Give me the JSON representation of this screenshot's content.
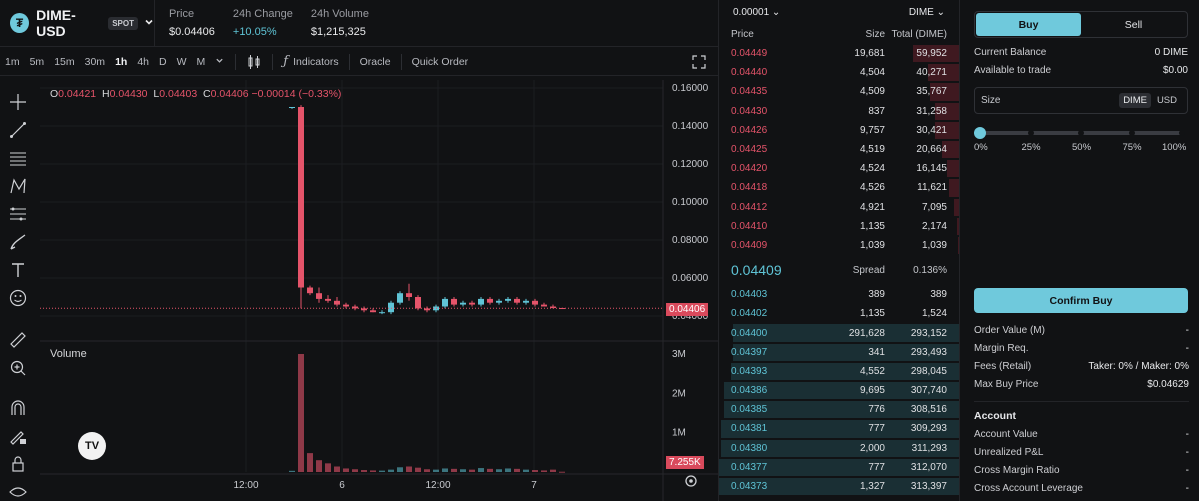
{
  "header": {
    "market_name": "DIME-USD",
    "market_type": "SPOT",
    "logo_letter": "₮",
    "stats": [
      {
        "label": "Price",
        "value": "$0.04406"
      },
      {
        "label": "24h Change",
        "value": "+10.05%"
      },
      {
        "label": "24h Volume",
        "value": "$1,215,325"
      }
    ]
  },
  "toolbar": {
    "timeframes": [
      "1m",
      "5m",
      "15m",
      "30m",
      "1h",
      "4h",
      "D",
      "W",
      "M"
    ],
    "active_timeframe": "1h",
    "indicators_label": "Indicators",
    "oracle_label": "Oracle",
    "quick_order_label": "Quick Order"
  },
  "tools": [
    "crosshair-icon",
    "trendline-icon",
    "fib-icon",
    "pattern-icon",
    "projection-icon",
    "brush-icon",
    "text-icon",
    "emoji-icon",
    "ruler-icon",
    "zoom-icon",
    "magnet-icon",
    "lock-drawing-icon",
    "lock-icon",
    "eye-icon"
  ],
  "chart": {
    "ohlc": {
      "o": "0.04421",
      "h": "0.04430",
      "l": "0.04403",
      "c": "0.04406",
      "change": "−0.00014 (−0.33%)"
    },
    "volume_label": "Volume",
    "last_price_tag": "0.04406",
    "last_price_tag_behind": "0.04400",
    "volume_tag": "7.255K",
    "price_ticks": [
      "0.16000",
      "0.14000",
      "0.12000",
      "0.10000",
      "0.08000",
      "0.06000",
      "0.04000"
    ],
    "volume_ticks": [
      "3M",
      "2M",
      "1M"
    ],
    "time_ticks": [
      "12:00",
      "6",
      "12:00",
      "7"
    ],
    "logo_text": "TV"
  },
  "chart_data": {
    "type": "candlestick",
    "price_axis": {
      "min": 0.04,
      "max": 0.16
    },
    "volume_axis": {
      "max": 3000000
    },
    "last_price": 0.04406,
    "candles": [
      {
        "o": 0.15,
        "h": 0.15,
        "l": 0.149,
        "c": 0.15
      },
      {
        "o": 0.15,
        "h": 0.151,
        "l": 0.044,
        "c": 0.055
      },
      {
        "o": 0.055,
        "h": 0.056,
        "l": 0.051,
        "c": 0.052
      },
      {
        "o": 0.052,
        "h": 0.055,
        "l": 0.047,
        "c": 0.049
      },
      {
        "o": 0.049,
        "h": 0.051,
        "l": 0.047,
        "c": 0.048
      },
      {
        "o": 0.048,
        "h": 0.05,
        "l": 0.045,
        "c": 0.046
      },
      {
        "o": 0.046,
        "h": 0.047,
        "l": 0.044,
        "c": 0.045
      },
      {
        "o": 0.045,
        "h": 0.046,
        "l": 0.043,
        "c": 0.044
      },
      {
        "o": 0.044,
        "h": 0.045,
        "l": 0.042,
        "c": 0.043
      },
      {
        "o": 0.043,
        "h": 0.044,
        "l": 0.042,
        "c": 0.042
      },
      {
        "o": 0.042,
        "h": 0.043,
        "l": 0.041,
        "c": 0.042
      },
      {
        "o": 0.042,
        "h": 0.048,
        "l": 0.041,
        "c": 0.047
      },
      {
        "o": 0.047,
        "h": 0.053,
        "l": 0.046,
        "c": 0.052
      },
      {
        "o": 0.052,
        "h": 0.057,
        "l": 0.048,
        "c": 0.05
      },
      {
        "o": 0.05,
        "h": 0.051,
        "l": 0.043,
        "c": 0.044
      },
      {
        "o": 0.044,
        "h": 0.045,
        "l": 0.042,
        "c": 0.043
      },
      {
        "o": 0.043,
        "h": 0.046,
        "l": 0.042,
        "c": 0.045
      },
      {
        "o": 0.045,
        "h": 0.05,
        "l": 0.044,
        "c": 0.049
      },
      {
        "o": 0.049,
        "h": 0.05,
        "l": 0.045,
        "c": 0.046
      },
      {
        "o": 0.046,
        "h": 0.048,
        "l": 0.045,
        "c": 0.047
      },
      {
        "o": 0.047,
        "h": 0.048,
        "l": 0.045,
        "c": 0.046
      },
      {
        "o": 0.046,
        "h": 0.05,
        "l": 0.045,
        "c": 0.049
      },
      {
        "o": 0.049,
        "h": 0.05,
        "l": 0.046,
        "c": 0.047
      },
      {
        "o": 0.047,
        "h": 0.049,
        "l": 0.046,
        "c": 0.048
      },
      {
        "o": 0.048,
        "h": 0.05,
        "l": 0.047,
        "c": 0.049
      },
      {
        "o": 0.049,
        "h": 0.05,
        "l": 0.046,
        "c": 0.047
      },
      {
        "o": 0.047,
        "h": 0.049,
        "l": 0.046,
        "c": 0.048
      },
      {
        "o": 0.048,
        "h": 0.049,
        "l": 0.045,
        "c": 0.046
      },
      {
        "o": 0.046,
        "h": 0.047,
        "l": 0.045,
        "c": 0.045
      },
      {
        "o": 0.045,
        "h": 0.046,
        "l": 0.044,
        "c": 0.0442
      },
      {
        "o": 0.0442,
        "h": 0.0443,
        "l": 0.044,
        "c": 0.04406
      }
    ],
    "volumes": [
      30000,
      3000000,
      480000,
      300000,
      220000,
      140000,
      90000,
      70000,
      50000,
      40000,
      35000,
      60000,
      120000,
      140000,
      110000,
      70000,
      60000,
      90000,
      80000,
      70000,
      60000,
      100000,
      80000,
      70000,
      90000,
      80000,
      60000,
      50000,
      40000,
      60000,
      7255
    ]
  },
  "orderbook": {
    "tick_size": "0.00001",
    "unit": "DIME",
    "headers": {
      "price": "Price",
      "size": "Size",
      "total": "Total (DIME)"
    },
    "asks": [
      {
        "price": "0.04449",
        "size": "19,681",
        "total": "59,952",
        "depth": 0.19
      },
      {
        "price": "0.04440",
        "size": "4,504",
        "total": "40,271",
        "depth": 0.13
      },
      {
        "price": "0.04435",
        "size": "4,509",
        "total": "35,767",
        "depth": 0.12
      },
      {
        "price": "0.04430",
        "size": "837",
        "total": "31,258",
        "depth": 0.1
      },
      {
        "price": "0.04426",
        "size": "9,757",
        "total": "30,421",
        "depth": 0.1
      },
      {
        "price": "0.04425",
        "size": "4,519",
        "total": "20,664",
        "depth": 0.07
      },
      {
        "price": "0.04420",
        "size": "4,524",
        "total": "16,145",
        "depth": 0.05
      },
      {
        "price": "0.04418",
        "size": "4,526",
        "total": "11,621",
        "depth": 0.04
      },
      {
        "price": "0.04412",
        "size": "4,921",
        "total": "7,095",
        "depth": 0.02
      },
      {
        "price": "0.04410",
        "size": "1,135",
        "total": "2,174",
        "depth": 0.01
      },
      {
        "price": "0.04409",
        "size": "1,039",
        "total": "1,039",
        "depth": 0.005
      }
    ],
    "spread": {
      "price": "0.04409",
      "label": "Spread",
      "value": "0.136%"
    },
    "bids": [
      {
        "price": "0.04403",
        "size": "389",
        "total": "389",
        "depth": 0.0
      },
      {
        "price": "0.04402",
        "size": "1,135",
        "total": "1,524",
        "depth": 0.0
      },
      {
        "price": "0.04400",
        "size": "291,628",
        "total": "293,152",
        "depth": 0.94
      },
      {
        "price": "0.04397",
        "size": "341",
        "total": "293,493",
        "depth": 0.94
      },
      {
        "price": "0.04393",
        "size": "4,552",
        "total": "298,045",
        "depth": 0.95
      },
      {
        "price": "0.04386",
        "size": "9,695",
        "total": "307,740",
        "depth": 0.98
      },
      {
        "price": "0.04385",
        "size": "776",
        "total": "308,516",
        "depth": 0.98
      },
      {
        "price": "0.04381",
        "size": "777",
        "total": "309,293",
        "depth": 0.99
      },
      {
        "price": "0.04380",
        "size": "2,000",
        "total": "311,293",
        "depth": 0.99
      },
      {
        "price": "0.04377",
        "size": "777",
        "total": "312,070",
        "depth": 1.0
      },
      {
        "price": "0.04373",
        "size": "1,327",
        "total": "313,397",
        "depth": 1.0
      }
    ]
  },
  "trade": {
    "buy_label": "Buy",
    "sell_label": "Sell",
    "current_balance_label": "Current Balance",
    "current_balance": "0 DIME",
    "available_label": "Available to trade",
    "available": "$0.00",
    "size_placeholder": "Size",
    "unit_dime": "DIME",
    "unit_usd": "USD",
    "slider_level": 0,
    "slider_ticks": [
      "0%",
      "25%",
      "50%",
      "75%",
      "100%"
    ],
    "confirm_label": "Confirm Buy",
    "summary": [
      {
        "label": "Order Value (M)",
        "value": "-"
      },
      {
        "label": "Margin Req.",
        "value": "-"
      },
      {
        "label": "Fees (Retail)",
        "value": "Taker: 0% / Maker: 0%"
      },
      {
        "label": "Max Buy Price",
        "value": "$0.04629"
      }
    ],
    "account_title": "Account",
    "account": [
      {
        "label": "Account Value",
        "value": "-"
      },
      {
        "label": "Unrealized P&L",
        "value": "-"
      },
      {
        "label": "Cross Margin Ratio",
        "value": "-"
      },
      {
        "label": "Cross Account Leverage",
        "value": "-"
      }
    ]
  }
}
